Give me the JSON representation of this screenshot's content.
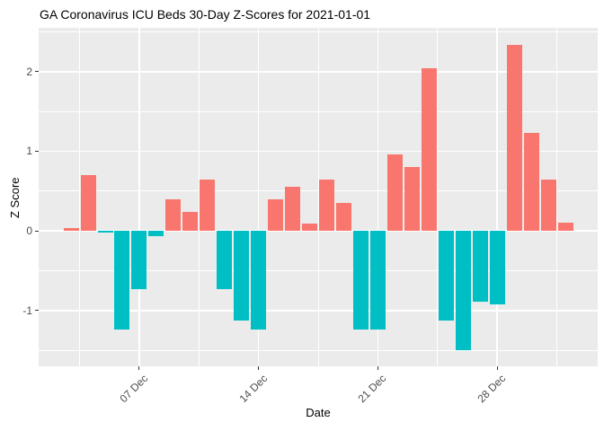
{
  "chart_data": {
    "type": "bar",
    "title": "GA Coronavirus ICU Beds 30-Day Z-Scores for 2021-01-01",
    "xlabel": "Date",
    "ylabel": "Z Score",
    "legend": "none",
    "grid": "on",
    "panel_background": "#EBEBEB",
    "grid_color": "#FFFFFF",
    "tick_text_color": "#4D4D4D",
    "title_text_color": "#000000",
    "bar_colors": {
      "positive": "#F8766D",
      "negative": "#00BFC4"
    },
    "ylim": [
      -1.7,
      2.55
    ],
    "xlim_days": [
      -1.9,
      30.9
    ],
    "y_major_ticks": [
      -1,
      0,
      1,
      2
    ],
    "y_tick_labels": [
      "-1",
      "0",
      "1",
      "2"
    ],
    "y_minor_ticks": [
      -1.5,
      -0.5,
      0.5,
      1.5,
      2.5
    ],
    "x_tick_labels": [
      "07 Dec",
      "14 Dec",
      "21 Dec",
      "28 Dec"
    ],
    "x_tick_days": [
      4,
      11,
      18,
      25
    ],
    "x_minor_days": [
      0.5,
      7.5,
      14.5,
      21.5,
      28.5
    ],
    "categories": [
      "Dec 03",
      "Dec 04",
      "Dec 05",
      "Dec 06",
      "Dec 07",
      "Dec 08",
      "Dec 09",
      "Dec 10",
      "Dec 11",
      "Dec 12",
      "Dec 13",
      "Dec 14",
      "Dec 15",
      "Dec 16",
      "Dec 17",
      "Dec 18",
      "Dec 19",
      "Dec 20",
      "Dec 21",
      "Dec 22",
      "Dec 23",
      "Dec 24",
      "Dec 25",
      "Dec 26",
      "Dec 27",
      "Dec 28",
      "Dec 29",
      "Dec 30",
      "Dec 31",
      "Jan 01"
    ],
    "values": [
      0.04,
      0.7,
      -0.02,
      -1.24,
      -0.73,
      -0.07,
      0.4,
      0.24,
      0.65,
      -0.73,
      -1.13,
      -1.24,
      0.4,
      0.55,
      0.09,
      0.65,
      0.35,
      -1.24,
      -1.24,
      0.96,
      0.8,
      2.04,
      -1.13,
      -1.5,
      -0.89,
      -0.92,
      2.34,
      1.23,
      0.65,
      0.1
    ]
  }
}
